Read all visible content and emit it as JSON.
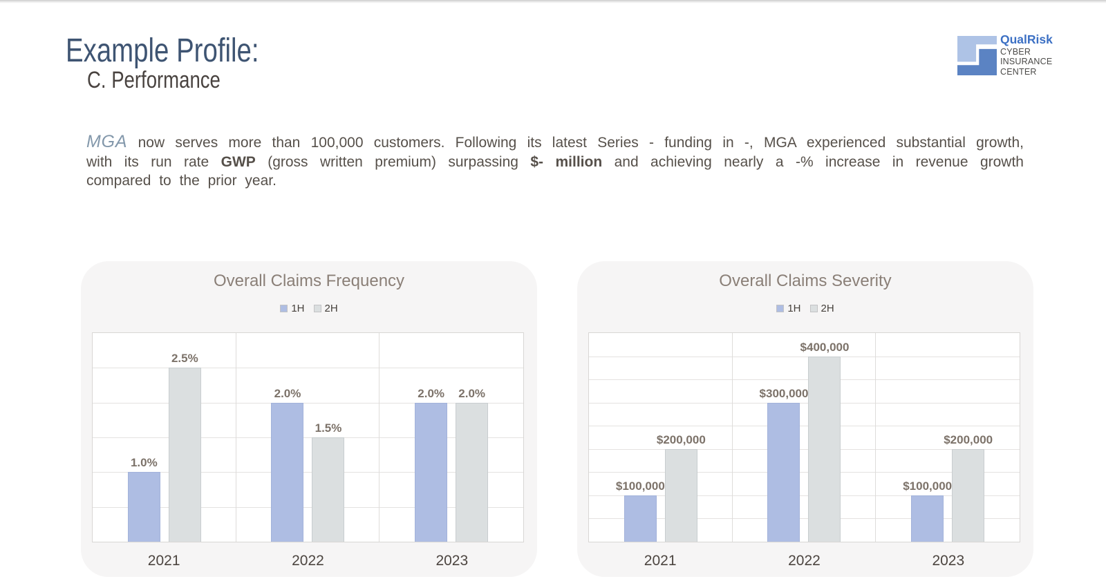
{
  "header": {
    "title": "Example Profile:",
    "subtitle": "C. Performance"
  },
  "logo": {
    "brand": "QualRisk",
    "lines": [
      "CYBER",
      "INSURANCE",
      "CENTER"
    ],
    "colors": {
      "brand_text": "#3c70c4",
      "mark_light_blue": "#aec3e6",
      "mark_dark_blue": "#5b83c3",
      "caption_text": "#4b4a48"
    }
  },
  "paragraph": {
    "lines": [
      {
        "segments": [
          {
            "text": "MGA",
            "style": "term"
          },
          {
            "text": " now serves more than 100,000 customers. Following its latest Series - funding in -, MGA experienced substantial growth,",
            "style": "normal"
          }
        ]
      },
      {
        "segments": [
          {
            "text": "with its run rate ",
            "style": "normal"
          },
          {
            "text": "GWP",
            "style": "bold"
          },
          {
            "text": " (gross written premium) surpassing ",
            "style": "normal"
          },
          {
            "text": "$- million",
            "style": "bold"
          },
          {
            "text": " and achieving nearly a -% increase in revenue growth",
            "style": "normal"
          }
        ]
      },
      {
        "segments": [
          {
            "text": "compared to the prior year.",
            "style": "normal"
          }
        ]
      }
    ]
  },
  "chart_data": [
    {
      "type": "bar",
      "title": "Overall Claims Frequency",
      "categories": [
        "2021",
        "2022",
        "2023"
      ],
      "series": [
        {
          "name": "1H",
          "values": [
            1.0,
            2.0,
            2.0
          ],
          "labels": [
            "1.0%",
            "2.0%",
            "2.0%"
          ],
          "color": "#aebde3",
          "border_color": "#a2b2da"
        },
        {
          "name": "2H",
          "values": [
            2.5,
            1.5,
            2.0
          ],
          "labels": [
            "2.5%",
            "1.5%",
            "2.0%"
          ],
          "color": "#dbdfe0",
          "border_color": "#c8cdcf"
        }
      ],
      "xlabel": "",
      "ylabel": "",
      "ylim": [
        0,
        3.0
      ],
      "grid_step": 0.5,
      "gridlines": 6,
      "legend_position": "top",
      "value_format": "percent"
    },
    {
      "type": "bar",
      "title": "Overall Claims Severity",
      "categories": [
        "2021",
        "2022",
        "2023"
      ],
      "series": [
        {
          "name": "1H",
          "values": [
            100000,
            300000,
            100000
          ],
          "labels": [
            "$100,000",
            "$300,000",
            "$100,000"
          ],
          "color": "#aebde3",
          "border_color": "#a2b2da"
        },
        {
          "name": "2H",
          "values": [
            200000,
            400000,
            200000
          ],
          "labels": [
            "$200,000",
            "$400,000",
            "$200,000"
          ],
          "color": "#dbdfe0",
          "border_color": "#c8cdcf"
        }
      ],
      "xlabel": "",
      "ylabel": "",
      "ylim": [
        0,
        450000
      ],
      "grid_step": 50000,
      "gridlines": 9,
      "legend_position": "top",
      "value_format": "usd"
    }
  ]
}
